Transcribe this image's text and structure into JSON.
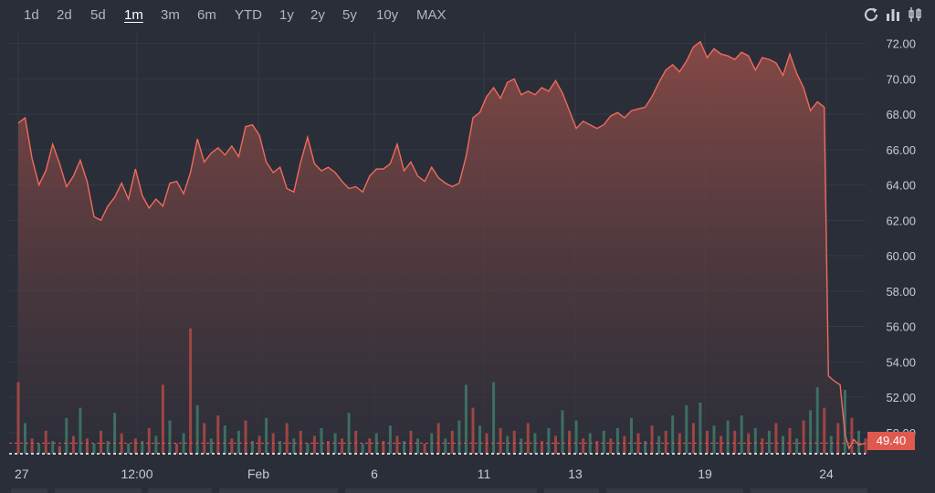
{
  "toolbar": {
    "ranges": [
      "1d",
      "2d",
      "5d",
      "1m",
      "3m",
      "6m",
      "YTD",
      "1y",
      "2y",
      "5y",
      "10y",
      "MAX"
    ],
    "active_range": "1m",
    "icons": [
      "refresh-icon",
      "bar-chart-icon",
      "candlestick-icon"
    ]
  },
  "colors": {
    "line": "#f06a5d",
    "area_top": "#8a4a46",
    "area_bottom": "#2e2f3a",
    "volume_up": "#3f7a6a",
    "volume_down": "#b04a44",
    "grid": "#363a45",
    "badge": "#e0594f"
  },
  "chart_data": {
    "type": "area",
    "ylim": [
      48.8,
      72.6
    ],
    "y_ticks": [
      "50.00",
      "52.00",
      "54.00",
      "56.00",
      "58.00",
      "60.00",
      "62.00",
      "64.00",
      "66.00",
      "68.00",
      "70.00",
      "72.00"
    ],
    "x_ticks": [
      "27",
      "12:00",
      "Feb",
      "6",
      "11",
      "13",
      "19",
      "24"
    ],
    "last_price": "49.40",
    "grid": true,
    "price_series": [
      [
        0,
        67.5
      ],
      [
        1,
        67.8
      ],
      [
        2,
        65.5
      ],
      [
        3,
        64.0
      ],
      [
        4,
        64.8
      ],
      [
        5,
        66.3
      ],
      [
        6,
        65.2
      ],
      [
        7,
        63.9
      ],
      [
        8,
        64.5
      ],
      [
        9,
        65.4
      ],
      [
        10,
        64.2
      ],
      [
        11,
        62.2
      ],
      [
        12,
        62.0
      ],
      [
        13,
        62.8
      ],
      [
        14,
        63.3
      ],
      [
        15,
        64.1
      ],
      [
        16,
        63.2
      ],
      [
        17,
        64.9
      ],
      [
        18,
        63.4
      ],
      [
        19,
        62.7
      ],
      [
        20,
        63.2
      ],
      [
        21,
        62.8
      ],
      [
        22,
        64.1
      ],
      [
        23,
        64.2
      ],
      [
        24,
        63.5
      ],
      [
        25,
        64.7
      ],
      [
        26,
        66.6
      ],
      [
        27,
        65.3
      ],
      [
        28,
        65.8
      ],
      [
        29,
        66.1
      ],
      [
        30,
        65.7
      ],
      [
        31,
        66.2
      ],
      [
        32,
        65.6
      ],
      [
        33,
        67.3
      ],
      [
        34,
        67.4
      ],
      [
        35,
        66.8
      ],
      [
        36,
        65.3
      ],
      [
        37,
        64.7
      ],
      [
        38,
        65.0
      ],
      [
        39,
        63.8
      ],
      [
        40,
        63.6
      ],
      [
        41,
        65.3
      ],
      [
        42,
        66.7
      ],
      [
        43,
        65.2
      ],
      [
        44,
        64.8
      ],
      [
        45,
        65.0
      ],
      [
        46,
        64.7
      ],
      [
        47,
        64.2
      ],
      [
        48,
        63.8
      ],
      [
        49,
        63.9
      ],
      [
        50,
        63.6
      ],
      [
        51,
        64.5
      ],
      [
        52,
        64.9
      ],
      [
        53,
        64.9
      ],
      [
        54,
        65.2
      ],
      [
        55,
        66.3
      ],
      [
        56,
        64.8
      ],
      [
        57,
        65.3
      ],
      [
        58,
        64.5
      ],
      [
        59,
        64.2
      ],
      [
        60,
        65.0
      ],
      [
        61,
        64.4
      ],
      [
        62,
        64.1
      ],
      [
        63,
        63.9
      ],
      [
        64,
        64.1
      ],
      [
        65,
        65.6
      ],
      [
        66,
        67.8
      ],
      [
        67,
        68.1
      ],
      [
        68,
        69.0
      ],
      [
        69,
        69.5
      ],
      [
        70,
        68.9
      ],
      [
        71,
        69.8
      ],
      [
        72,
        70.0
      ],
      [
        73,
        69.1
      ],
      [
        74,
        69.3
      ],
      [
        75,
        69.1
      ],
      [
        76,
        69.5
      ],
      [
        77,
        69.3
      ],
      [
        78,
        69.9
      ],
      [
        79,
        69.2
      ],
      [
        80,
        68.2
      ],
      [
        81,
        67.2
      ],
      [
        82,
        67.6
      ],
      [
        83,
        67.4
      ],
      [
        84,
        67.2
      ],
      [
        85,
        67.4
      ],
      [
        86,
        67.9
      ],
      [
        87,
        68.1
      ],
      [
        88,
        67.8
      ],
      [
        89,
        68.2
      ],
      [
        90,
        68.3
      ],
      [
        91,
        68.4
      ],
      [
        92,
        69.0
      ],
      [
        93,
        69.8
      ],
      [
        94,
        70.5
      ],
      [
        95,
        70.8
      ],
      [
        96,
        70.4
      ],
      [
        97,
        71.0
      ],
      [
        98,
        71.8
      ],
      [
        99,
        72.1
      ],
      [
        100,
        71.2
      ],
      [
        101,
        71.7
      ],
      [
        102,
        71.4
      ],
      [
        103,
        71.3
      ],
      [
        104,
        71.1
      ],
      [
        105,
        71.5
      ],
      [
        106,
        71.3
      ],
      [
        107,
        70.5
      ],
      [
        108,
        71.2
      ],
      [
        109,
        71.1
      ],
      [
        110,
        70.9
      ],
      [
        111,
        70.2
      ],
      [
        112,
        71.4
      ],
      [
        113,
        70.3
      ],
      [
        114,
        69.5
      ],
      [
        115,
        68.2
      ],
      [
        116,
        68.7
      ],
      [
        117,
        68.4
      ],
      [
        117.6,
        53.2
      ],
      [
        118.5,
        52.9
      ],
      [
        119.3,
        52.7
      ],
      [
        120,
        49.9
      ],
      [
        120.6,
        49.1
      ],
      [
        121.3,
        49.6
      ],
      [
        122,
        49.3
      ],
      [
        123,
        49.4
      ]
    ],
    "volume_series": [
      [
        0,
        2.8,
        "down"
      ],
      [
        1,
        1.2,
        "up"
      ],
      [
        2,
        0.6,
        "down"
      ],
      [
        3,
        0.4,
        "up"
      ],
      [
        4,
        0.9,
        "down"
      ],
      [
        5,
        0.5,
        "up"
      ],
      [
        6,
        0.3,
        "down"
      ],
      [
        7,
        1.4,
        "up"
      ],
      [
        8,
        0.7,
        "down"
      ],
      [
        9,
        1.8,
        "up"
      ],
      [
        10,
        0.6,
        "down"
      ],
      [
        11,
        0.4,
        "up"
      ],
      [
        12,
        0.9,
        "down"
      ],
      [
        13,
        0.5,
        "up"
      ],
      [
        14,
        1.6,
        "up"
      ],
      [
        15,
        0.8,
        "down"
      ],
      [
        16,
        0.4,
        "up"
      ],
      [
        17,
        0.6,
        "down"
      ],
      [
        18,
        0.5,
        "up"
      ],
      [
        19,
        1.0,
        "down"
      ],
      [
        20,
        0.7,
        "up"
      ],
      [
        21,
        2.7,
        "down"
      ],
      [
        22,
        1.3,
        "up"
      ],
      [
        23,
        0.4,
        "down"
      ],
      [
        24,
        0.8,
        "up"
      ],
      [
        25,
        4.9,
        "down"
      ],
      [
        26,
        1.9,
        "up"
      ],
      [
        27,
        1.2,
        "down"
      ],
      [
        28,
        0.6,
        "up"
      ],
      [
        29,
        1.5,
        "down"
      ],
      [
        30,
        1.1,
        "up"
      ],
      [
        31,
        0.6,
        "down"
      ],
      [
        32,
        0.9,
        "up"
      ],
      [
        33,
        1.3,
        "down"
      ],
      [
        34,
        0.5,
        "up"
      ],
      [
        35,
        0.7,
        "down"
      ],
      [
        36,
        1.4,
        "up"
      ],
      [
        37,
        0.8,
        "down"
      ],
      [
        38,
        0.5,
        "up"
      ],
      [
        39,
        1.2,
        "down"
      ],
      [
        40,
        0.6,
        "up"
      ],
      [
        41,
        0.9,
        "down"
      ],
      [
        42,
        0.4,
        "up"
      ],
      [
        43,
        0.7,
        "down"
      ],
      [
        44,
        1.0,
        "up"
      ],
      [
        45,
        0.5,
        "down"
      ],
      [
        46,
        0.8,
        "up"
      ],
      [
        47,
        0.6,
        "down"
      ],
      [
        48,
        1.6,
        "up"
      ],
      [
        49,
        0.9,
        "down"
      ],
      [
        50,
        0.4,
        "up"
      ],
      [
        51,
        0.6,
        "down"
      ],
      [
        52,
        0.8,
        "up"
      ],
      [
        53,
        0.5,
        "down"
      ],
      [
        54,
        1.1,
        "up"
      ],
      [
        55,
        0.7,
        "down"
      ],
      [
        56,
        0.5,
        "up"
      ],
      [
        57,
        0.9,
        "down"
      ],
      [
        58,
        0.6,
        "up"
      ],
      [
        59,
        0.4,
        "down"
      ],
      [
        60,
        0.8,
        "up"
      ],
      [
        61,
        1.2,
        "down"
      ],
      [
        62,
        0.6,
        "up"
      ],
      [
        63,
        0.9,
        "down"
      ],
      [
        64,
        1.3,
        "up"
      ],
      [
        65,
        2.7,
        "up"
      ],
      [
        66,
        1.8,
        "down"
      ],
      [
        67,
        1.1,
        "up"
      ],
      [
        68,
        0.8,
        "down"
      ],
      [
        69,
        2.8,
        "up"
      ],
      [
        70,
        1.0,
        "down"
      ],
      [
        71,
        0.7,
        "up"
      ],
      [
        72,
        0.9,
        "down"
      ],
      [
        73,
        0.6,
        "up"
      ],
      [
        74,
        1.2,
        "down"
      ],
      [
        75,
        0.8,
        "up"
      ],
      [
        76,
        0.5,
        "down"
      ],
      [
        77,
        1.0,
        "up"
      ],
      [
        78,
        0.7,
        "down"
      ],
      [
        79,
        1.7,
        "up"
      ],
      [
        80,
        0.9,
        "down"
      ],
      [
        81,
        1.3,
        "up"
      ],
      [
        82,
        0.6,
        "down"
      ],
      [
        83,
        0.8,
        "up"
      ],
      [
        84,
        0.5,
        "down"
      ],
      [
        85,
        0.9,
        "up"
      ],
      [
        86,
        0.6,
        "down"
      ],
      [
        87,
        1.0,
        "up"
      ],
      [
        88,
        0.7,
        "down"
      ],
      [
        89,
        1.4,
        "up"
      ],
      [
        90,
        0.8,
        "down"
      ],
      [
        91,
        0.5,
        "up"
      ],
      [
        92,
        1.1,
        "down"
      ],
      [
        93,
        0.7,
        "up"
      ],
      [
        94,
        0.9,
        "down"
      ],
      [
        95,
        1.5,
        "up"
      ],
      [
        96,
        0.8,
        "down"
      ],
      [
        97,
        1.9,
        "up"
      ],
      [
        98,
        1.2,
        "down"
      ],
      [
        99,
        2.0,
        "up"
      ],
      [
        100,
        0.9,
        "down"
      ],
      [
        101,
        1.1,
        "up"
      ],
      [
        102,
        0.7,
        "down"
      ],
      [
        103,
        1.3,
        "up"
      ],
      [
        104,
        0.9,
        "down"
      ],
      [
        105,
        1.5,
        "up"
      ],
      [
        106,
        0.8,
        "down"
      ],
      [
        107,
        1.0,
        "up"
      ],
      [
        108,
        0.6,
        "down"
      ],
      [
        109,
        0.9,
        "up"
      ],
      [
        110,
        1.2,
        "down"
      ],
      [
        111,
        0.7,
        "up"
      ],
      [
        112,
        1.0,
        "down"
      ],
      [
        113,
        0.6,
        "up"
      ],
      [
        114,
        1.3,
        "down"
      ],
      [
        115,
        1.7,
        "up"
      ],
      [
        116,
        2.6,
        "up"
      ],
      [
        117,
        1.8,
        "down"
      ],
      [
        118,
        0.7,
        "up"
      ],
      [
        119,
        1.2,
        "down"
      ],
      [
        120,
        2.5,
        "up"
      ],
      [
        121,
        1.4,
        "down"
      ],
      [
        122,
        0.9,
        "up"
      ],
      [
        123,
        0.6,
        "down"
      ]
    ]
  }
}
